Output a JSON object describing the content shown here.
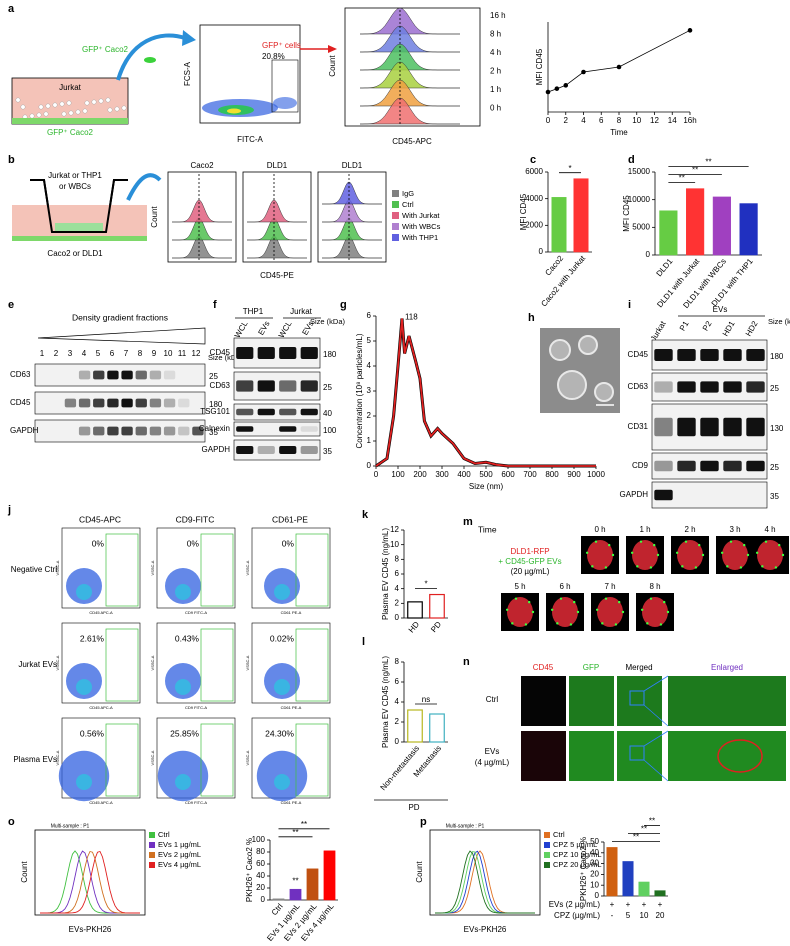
{
  "panel_labels": [
    "a",
    "b",
    "c",
    "d",
    "e",
    "f",
    "g",
    "h",
    "i",
    "j",
    "k",
    "l",
    "m",
    "n",
    "o",
    "p"
  ],
  "a": {
    "schematic": {
      "top": "GFP⁺ Caco2",
      "medium": "Jurkat",
      "bottom": "GFP⁺ Caco2"
    },
    "flow": {
      "xlabel": "FITC-A",
      "ylabel": "FCS-A",
      "gate": "GFP⁺ cells",
      "percent": "20.8%"
    },
    "histogram": {
      "xlabel": "CD45-APC",
      "ylabel": "Count",
      "times": [
        "16 h",
        "8 h",
        "4 h",
        "2 h",
        "1 h",
        "0 h"
      ],
      "colors": [
        "#9b6fd0",
        "#6f7fe0",
        "#4cc060",
        "#a8d040",
        "#f0a040",
        "#f07070"
      ]
    }
  },
  "b": {
    "schematic": {
      "top": "Jurkat or THP1",
      "top2": "or WBCs",
      "bottom": "Caco2 or DLD1"
    },
    "titles": [
      "Caco2",
      "DLD1",
      "DLD1"
    ],
    "xlabel": "CD45-PE",
    "ylabel": "Count",
    "legend": [
      "IgG",
      "Ctrl",
      "With Jurkat",
      "With WBCs",
      "With THP1"
    ],
    "legend_colors": [
      "#808080",
      "#50c050",
      "#e06080",
      "#b080d0",
      "#6060e0"
    ]
  },
  "e": {
    "title": "Density gradient fractions",
    "lanes": [
      "1",
      "2",
      "3",
      "4",
      "5",
      "6",
      "7",
      "8",
      "9",
      "10",
      "11",
      "12"
    ],
    "size_label": "Size (kDa)",
    "rows": [
      "CD63",
      "CD45",
      "GAPDH"
    ],
    "sizes": [
      "25",
      "180",
      "35"
    ]
  },
  "f": {
    "groups": [
      "THP1",
      "Jurkat"
    ],
    "lanes": [
      "WCL",
      "EVs",
      "WCL",
      "EVs"
    ],
    "size_label": "Size (kDa)",
    "rows": [
      "CD45",
      "CD63",
      "TSG101",
      "Calnexin",
      "GAPDH"
    ],
    "sizes": [
      "180",
      "25",
      "40",
      "100",
      "35"
    ]
  },
  "i": {
    "group": "EVs",
    "lanes": [
      "Jurkat",
      "P1",
      "P2",
      "HD1",
      "HD2"
    ],
    "size_label": "Size (kDa)",
    "rows": [
      "CD45",
      "CD63",
      "CD31",
      "CD9",
      "GAPDH"
    ],
    "sizes": [
      "180",
      "25",
      "130",
      "25",
      "35"
    ]
  },
  "j": {
    "columns": [
      "CD45-APC",
      "CD9-FITC",
      "CD61-PE"
    ],
    "rows": [
      "Negative Ctrl",
      "Jurkat EVs",
      "Plasma EVs"
    ],
    "x_axes": [
      "CD45 APC-A",
      "CD9 FITC-A",
      "CD61 PE-A"
    ],
    "y_axis": "VSSC-A",
    "percents": [
      [
        "0%",
        "0%",
        "0%"
      ],
      [
        "2.61%",
        "0.43%",
        "0.02%"
      ],
      [
        "0.56%",
        "25.85%",
        "24.30%"
      ]
    ]
  },
  "m": {
    "title": "Time",
    "times": [
      "0 h",
      "1 h",
      "2 h",
      "3 h",
      "4 h",
      "5 h",
      "6 h",
      "7 h",
      "8 h"
    ],
    "legend": [
      "DLD1-RFP",
      "+ CD45-GFP EVs",
      "(20 µg/mL)"
    ]
  },
  "n": {
    "columns": [
      "CD45",
      "GFP",
      "Merged",
      "Enlarged"
    ],
    "rows": [
      [
        "Ctrl"
      ],
      [
        "EVs",
        "(4 µg/mL)"
      ]
    ]
  },
  "o_histogram": {
    "header": "Multi-sample : P1",
    "xlabel": "EVs-PKH26",
    "ylabel": "Count",
    "legend": [
      "Ctrl",
      "EVs 1 µg/mL",
      "EVs 2 µg/mL",
      "EVs 4 µg/mL"
    ],
    "colors": [
      "#40c040",
      "#7030c0",
      "#d07020",
      "#e02020"
    ]
  },
  "p_histogram": {
    "header": "Multi-sample : P1",
    "xlabel": "EVs-PKH26",
    "ylabel": "Count",
    "legend": [
      "Ctrl",
      "CPZ 5 µg/mL",
      "CPZ 10 µg/mL",
      "CPZ 20 µg/mL"
    ],
    "colors": [
      "#e07020",
      "#2040d0",
      "#60d060",
      "#207020"
    ]
  },
  "chart_data": [
    {
      "type": "line",
      "xlabel": "Time",
      "ylabel": "MFI CD45",
      "x": [
        0,
        1,
        2,
        4,
        8,
        16
      ],
      "values": [
        2100,
        2200,
        2300,
        2700,
        2850,
        3950
      ],
      "xlim": [
        0,
        16
      ],
      "ylim": [
        1500,
        4200
      ],
      "xticks": [
        0,
        2,
        4,
        6,
        8,
        10,
        12,
        14,
        {
          "value": 16,
          "label": "16h"
        }
      ],
      "color": "#000000",
      "markers": true
    },
    {
      "type": "bar",
      "ylabel": "MFI CD45",
      "categories": [
        "Caco2",
        "Caco2 with Jurkat"
      ],
      "values": [
        4100,
        5500
      ],
      "colors": [
        "#66cc44",
        "#ff3333"
      ],
      "ylim": [
        0,
        6000
      ],
      "yticks": [
        0,
        2000,
        4000,
        6000
      ],
      "annotations": [
        "*"
      ]
    },
    {
      "type": "bar",
      "ylabel": "MFI CD45",
      "categories": [
        "DLD1",
        "DLD1 with Jurkat",
        "DLD1 with WBCs",
        "DLD1 with THP1"
      ],
      "values": [
        8000,
        12000,
        10500,
        9300
      ],
      "colors": [
        "#66cc44",
        "#ff3333",
        "#a040c0",
        "#2030c0"
      ],
      "ylim": [
        0,
        15000
      ],
      "yticks": [
        0,
        5000,
        10000,
        15000
      ],
      "annotations": [
        "**",
        "**",
        "**"
      ]
    },
    {
      "type": "line",
      "xlabel": "Size (nm)",
      "ylabel": "Concentration (10⁸ particles/mL)",
      "x": [
        0,
        50,
        80,
        100,
        118,
        130,
        150,
        180,
        200,
        220,
        250,
        280,
        300,
        350,
        400,
        450,
        500,
        550,
        600,
        700,
        1000
      ],
      "values": [
        0,
        0.3,
        2,
        4,
        5.9,
        4.5,
        5.2,
        4.2,
        3.5,
        1.8,
        1.2,
        1.5,
        1.3,
        0.9,
        0.3,
        0.1,
        0.15,
        0.05,
        0,
        0,
        0
      ],
      "xlim": [
        0,
        1000
      ],
      "ylim": [
        0,
        6
      ],
      "xticks": [
        0,
        100,
        200,
        300,
        400,
        500,
        600,
        700,
        800,
        900,
        1000
      ],
      "yticks": [
        0,
        1,
        2,
        3,
        4,
        5,
        6
      ],
      "color": "#e02020",
      "annotations": [
        "118"
      ]
    },
    {
      "type": "bar",
      "ylabel": "Plasma EV CD45 (ng/mL)",
      "categories": [
        "HD",
        "PD"
      ],
      "values": [
        2.2,
        3.2
      ],
      "colors": [
        "#000000",
        "#e02020"
      ],
      "fill": false,
      "ylim": [
        0,
        12
      ],
      "yticks": [
        0,
        2,
        4,
        6,
        8,
        10,
        12
      ],
      "annotations": [
        "*"
      ]
    },
    {
      "type": "bar",
      "ylabel": "Plasma EV CD45 (ng/mL)",
      "categories": [
        "Non-metastasis",
        "Metastasis"
      ],
      "values": [
        3.2,
        2.8
      ],
      "colors": [
        "#b8b820",
        "#40b0c0"
      ],
      "fill": false,
      "ylim": [
        0,
        8
      ],
      "yticks": [
        0,
        2,
        4,
        6,
        8
      ],
      "annotations": [
        "ns"
      ],
      "group": "PD"
    },
    {
      "type": "bar",
      "ylabel": "PKH26⁺ Caco2 %",
      "categories": [
        "Ctrl",
        "EVs 1 µg/mL",
        "EVs 2 µg/mL",
        "EVs 4 µg/mL"
      ],
      "values": [
        2,
        18,
        52,
        82
      ],
      "colors": [
        "#888888",
        "#7030c0",
        "#c05010",
        "#ff0000"
      ],
      "ylim": [
        0,
        100
      ],
      "yticks": [
        0,
        20,
        40,
        60,
        80,
        100
      ],
      "annotations": [
        "**",
        "**",
        "**"
      ]
    },
    {
      "type": "bar",
      "ylabel": "PKH26⁺ Caco2 %",
      "categories": [
        "-",
        "5",
        "10",
        "20"
      ],
      "values": [
        45,
        32,
        13,
        5
      ],
      "colors": [
        "#d06010",
        "#2040c0",
        "#60d060",
        "#207020"
      ],
      "ylim": [
        0,
        50
      ],
      "yticks": [
        0,
        10,
        20,
        30,
        40,
        50
      ],
      "annotations": [
        "**",
        "**",
        "**"
      ],
      "row_labels": [
        "EVs (2 µg/mL)",
        "CPZ (µg/mL)"
      ],
      "evs": [
        "+",
        "+",
        "+",
        "+"
      ]
    }
  ]
}
